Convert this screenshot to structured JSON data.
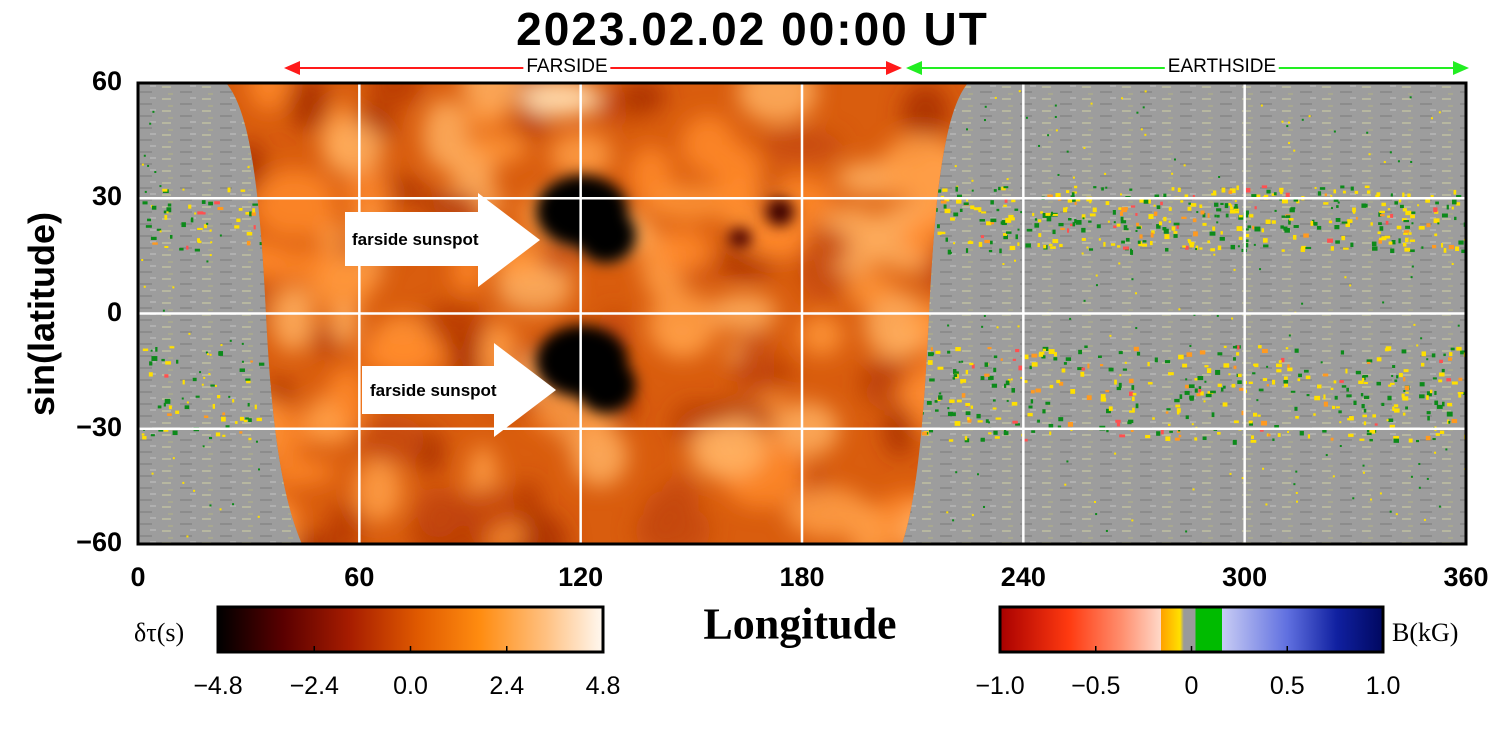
{
  "title": "2023.02.02  00:00 UT",
  "region_labels": {
    "farside": "FARSIDE",
    "earthside": "EARTHSIDE"
  },
  "region_colors": {
    "farside": "#ff1a1a",
    "earthside": "#22ee22"
  },
  "annotations": [
    "farside sunspot",
    "farside sunspot"
  ],
  "chart_data": {
    "type": "heatmap",
    "title": "2023.02.02  00:00 UT",
    "xlabel": "Longitude",
    "ylabel": "sin(latitude)",
    "xlim": [
      0,
      360
    ],
    "ylim": [
      -60,
      60
    ],
    "x_ticks": [
      0,
      60,
      120,
      180,
      240,
      300,
      360
    ],
    "y_ticks": [
      60,
      30,
      0,
      -30,
      -60
    ],
    "x_tick_labels": [
      "0",
      "60",
      "120",
      "180",
      "240",
      "300",
      "360"
    ],
    "y_tick_labels": [
      "60",
      "30",
      "0",
      "−30",
      "−60"
    ],
    "grid": true,
    "regions": [
      {
        "name": "FARSIDE",
        "lon_range": [
          40,
          208
        ]
      },
      {
        "name": "EARTHSIDE",
        "lon_range": [
          208,
          360
        ]
      }
    ],
    "farside_sunspots": [
      {
        "label": "farside sunspot",
        "lon": 122,
        "lat": 24
      },
      {
        "label": "farside sunspot",
        "lon": 122,
        "lat": -15
      }
    ],
    "colorbars": [
      {
        "title": "δτ(s)",
        "range": [
          -4.8,
          4.8
        ],
        "ticks": [
          -4.8,
          -2.4,
          0.0,
          2.4,
          4.8
        ],
        "tick_labels": [
          "−4.8",
          "−2.4",
          "0.0",
          "2.4",
          "4.8"
        ],
        "colors": [
          "#000000",
          "#5a0000",
          "#a61c00",
          "#e05a00",
          "#ff8c10",
          "#ffc080",
          "#fff8f0"
        ]
      },
      {
        "title": "B(kG)",
        "range": [
          -1.0,
          1.0
        ],
        "ticks": [
          -1.0,
          -0.5,
          0,
          0.5,
          1.0
        ],
        "tick_labels": [
          "−1.0",
          "−0.5",
          "0",
          "0.5",
          "1.0"
        ],
        "colors": [
          "#a80000",
          "#ff3a10",
          "#ff9070",
          "#ffd8c8",
          "#ffe000",
          "#00bb00",
          "#b8c0f4",
          "#4050e0",
          "#000868"
        ]
      }
    ]
  }
}
